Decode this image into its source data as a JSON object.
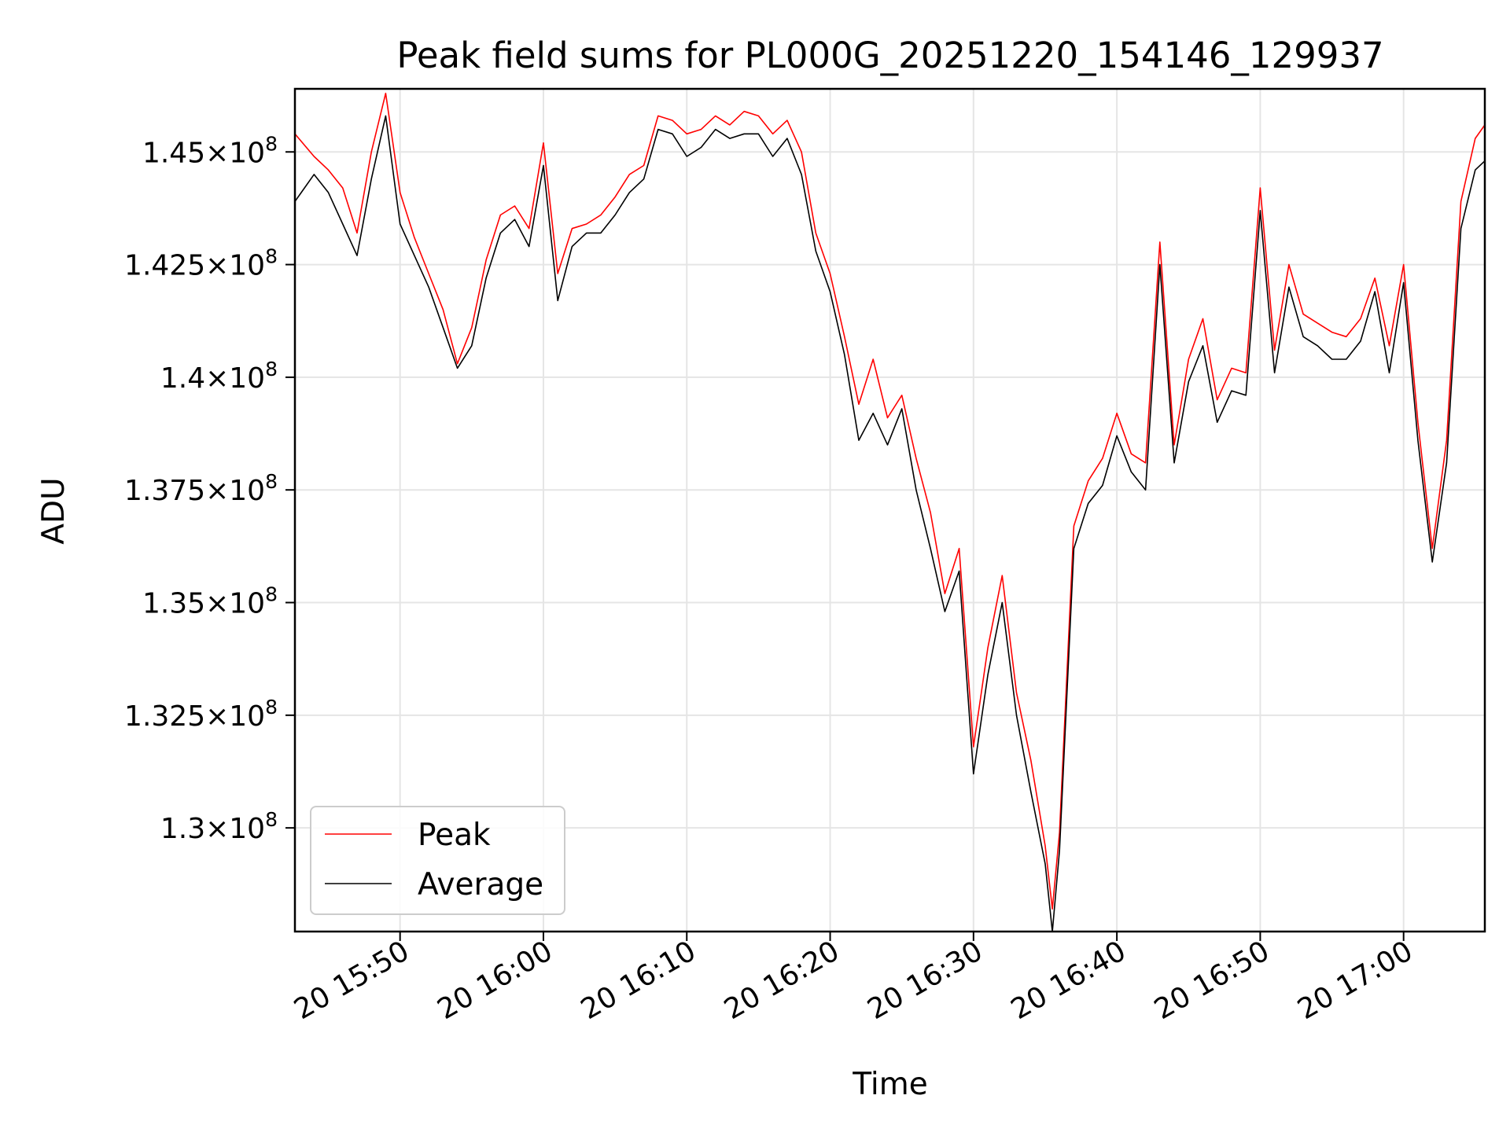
{
  "chart_data": {
    "type": "line",
    "title": "Peak field sums for PL000G_20251220_154146_129937",
    "xlabel": "Time",
    "ylabel": "ADU",
    "xlim": [
      "15:42:40",
      "17:05:40"
    ],
    "ylim": [
      127700000,
      146400000
    ],
    "x_ticks": [
      {
        "t": "15:50",
        "label": "20 15:50"
      },
      {
        "t": "16:00",
        "label": "20 16:00"
      },
      {
        "t": "16:10",
        "label": "20 16:10"
      },
      {
        "t": "16:20",
        "label": "20 16:20"
      },
      {
        "t": "16:30",
        "label": "20 16:30"
      },
      {
        "t": "16:40",
        "label": "20 16:40"
      },
      {
        "t": "16:50",
        "label": "20 16:50"
      },
      {
        "t": "17:00",
        "label": "20 17:00"
      }
    ],
    "y_ticks": [
      {
        "value": 130000000,
        "mant": "1.3",
        "exp": "8"
      },
      {
        "value": 132500000,
        "mant": "1.325",
        "exp": "8"
      },
      {
        "value": 135000000,
        "mant": "1.35",
        "exp": "8"
      },
      {
        "value": 137500000,
        "mant": "1.375",
        "exp": "8"
      },
      {
        "value": 140000000,
        "mant": "1.4",
        "exp": "8"
      },
      {
        "value": 142500000,
        "mant": "1.425",
        "exp": "8"
      },
      {
        "value": 145000000,
        "mant": "1.45",
        "exp": "8"
      }
    ],
    "grid": true,
    "legend_position": "lower-left",
    "x": [
      "15:42:40",
      "15:44:00",
      "15:45:00",
      "15:46:00",
      "15:47:00",
      "15:48:00",
      "15:49:00",
      "15:50:00",
      "15:51:00",
      "15:52:00",
      "15:53:00",
      "15:54:00",
      "15:55:00",
      "15:56:00",
      "15:57:00",
      "15:58:00",
      "15:59:00",
      "16:00:00",
      "16:01:00",
      "16:02:00",
      "16:03:00",
      "16:04:00",
      "16:05:00",
      "16:06:00",
      "16:07:00",
      "16:08:00",
      "16:09:00",
      "16:10:00",
      "16:11:00",
      "16:12:00",
      "16:13:00",
      "16:14:00",
      "16:15:00",
      "16:16:00",
      "16:17:00",
      "16:18:00",
      "16:19:00",
      "16:20:00",
      "16:21:00",
      "16:22:00",
      "16:23:00",
      "16:24:00",
      "16:25:00",
      "16:26:00",
      "16:27:00",
      "16:28:00",
      "16:29:00",
      "16:30:00",
      "16:31:00",
      "16:32:00",
      "16:33:00",
      "16:34:00",
      "16:35:00",
      "16:35:30",
      "16:36:00",
      "16:37:00",
      "16:38:00",
      "16:39:00",
      "16:40:00",
      "16:41:00",
      "16:42:00",
      "16:43:00",
      "16:44:00",
      "16:45:00",
      "16:46:00",
      "16:47:00",
      "16:48:00",
      "16:49:00",
      "16:50:00",
      "16:51:00",
      "16:52:00",
      "16:53:00",
      "16:54:00",
      "16:55:00",
      "16:56:00",
      "16:57:00",
      "16:58:00",
      "16:59:00",
      "17:00:00",
      "17:01:00",
      "17:02:00",
      "17:03:00",
      "17:04:00",
      "17:05:00",
      "17:05:40"
    ],
    "series": [
      {
        "name": "Peak",
        "color": "#ff0000",
        "values": [
          145400000,
          144900000,
          144600000,
          144200000,
          143200000,
          145000000,
          146300000,
          144100000,
          143100000,
          142300000,
          141500000,
          140300000,
          141100000,
          142600000,
          143600000,
          143800000,
          143300000,
          145200000,
          142300000,
          143300000,
          143400000,
          143600000,
          144000000,
          144500000,
          144700000,
          145800000,
          145700000,
          145400000,
          145500000,
          145800000,
          145600000,
          145900000,
          145800000,
          145400000,
          145700000,
          145000000,
          143200000,
          142300000,
          140900000,
          139400000,
          140400000,
          139100000,
          139600000,
          138200000,
          137000000,
          135200000,
          136200000,
          131800000,
          134000000,
          135600000,
          133000000,
          131500000,
          129600000,
          128200000,
          129900000,
          136700000,
          137700000,
          138200000,
          139200000,
          138300000,
          138100000,
          143000000,
          138500000,
          140400000,
          141300000,
          139500000,
          140200000,
          140100000,
          144200000,
          140600000,
          142500000,
          141400000,
          141200000,
          141000000,
          140900000,
          141300000,
          142200000,
          140700000,
          142500000,
          139000000,
          136200000,
          138600000,
          143900000,
          145300000,
          145600000
        ]
      },
      {
        "name": "Average",
        "color": "#000000",
        "values": [
          143900000,
          144500000,
          144100000,
          143400000,
          142700000,
          144400000,
          145800000,
          143400000,
          142700000,
          142000000,
          141100000,
          140200000,
          140700000,
          142200000,
          143200000,
          143500000,
          142900000,
          144700000,
          141700000,
          142900000,
          143200000,
          143200000,
          143600000,
          144100000,
          144400000,
          145500000,
          145400000,
          144900000,
          145100000,
          145500000,
          145300000,
          145400000,
          145400000,
          144900000,
          145300000,
          144500000,
          142800000,
          141900000,
          140500000,
          138600000,
          139200000,
          138500000,
          139300000,
          137500000,
          136200000,
          134800000,
          135700000,
          131200000,
          133400000,
          135000000,
          132500000,
          130800000,
          129200000,
          127700000,
          129500000,
          136200000,
          137200000,
          137600000,
          138700000,
          137900000,
          137500000,
          142500000,
          138100000,
          139900000,
          140700000,
          139000000,
          139700000,
          139600000,
          143700000,
          140100000,
          142000000,
          140900000,
          140700000,
          140400000,
          140400000,
          140800000,
          141900000,
          140100000,
          142100000,
          138600000,
          135900000,
          138100000,
          143300000,
          144600000,
          144800000
        ]
      }
    ]
  }
}
